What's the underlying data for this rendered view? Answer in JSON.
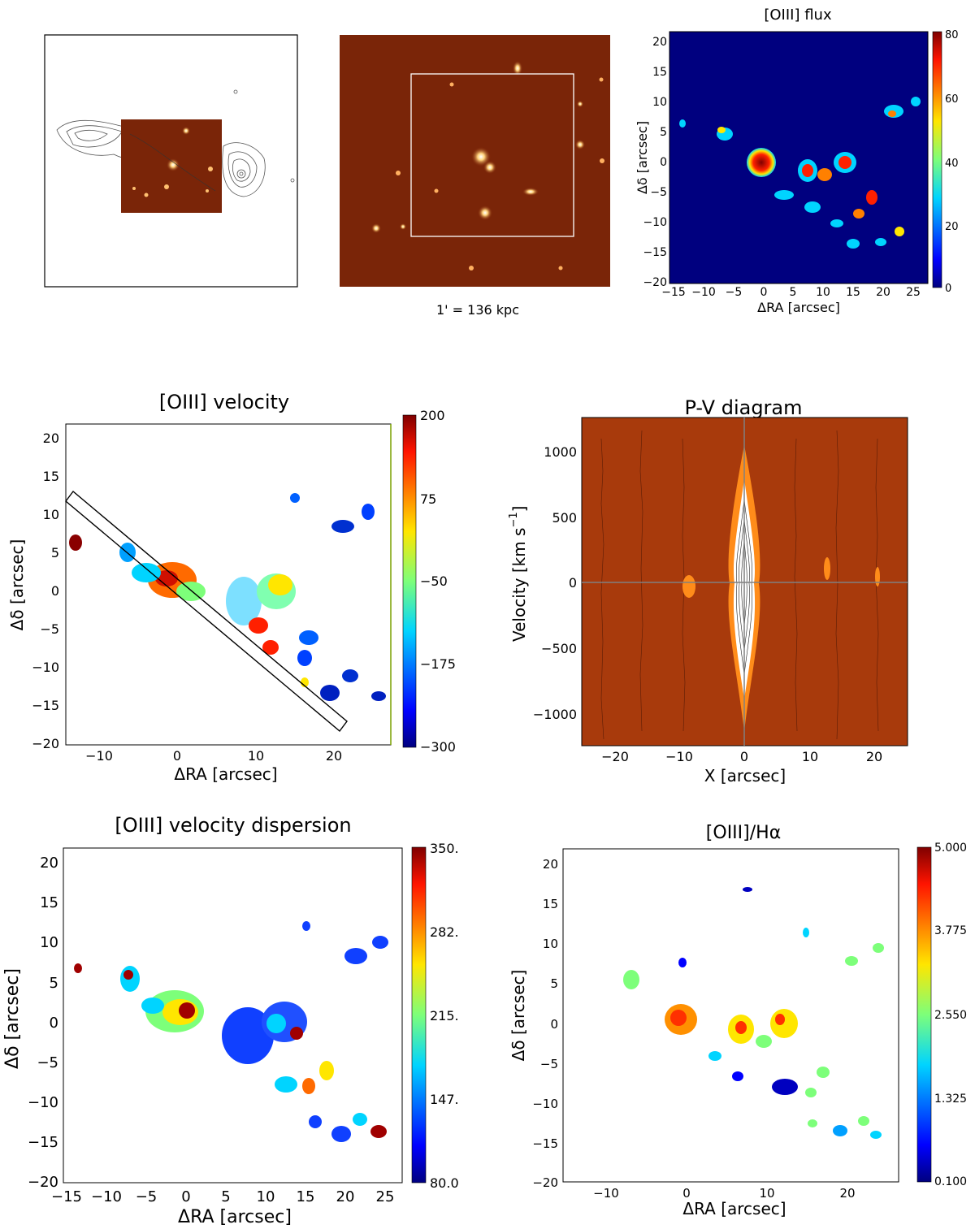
{
  "panels": {
    "radio_overlay": {},
    "optical_image": {
      "scale_label": "1' = 136 kpc"
    },
    "flux": {
      "title": "[OIII] flux",
      "xlabel": "ΔRA [arcsec]",
      "ylabel": "Δδ [arcsec]",
      "xticks": [
        "−15",
        "−10",
        "−5",
        "0",
        "5",
        "10",
        "15",
        "20",
        "25"
      ],
      "yticks": [
        "20",
        "15",
        "10",
        "5",
        "0",
        "−5",
        "−10",
        "−15",
        "−20"
      ],
      "colorbar_ticks": [
        "80",
        "60",
        "40",
        "20",
        "0"
      ]
    },
    "velocity": {
      "title": "[OIII] velocity",
      "xlabel": "ΔRA [arcsec]",
      "ylabel": "Δδ [arcsec]",
      "xticks": [
        "−10",
        "0",
        "10",
        "20"
      ],
      "yticks": [
        "20",
        "15",
        "10",
        "5",
        "0",
        "−5",
        "−10",
        "−15",
        "−20"
      ],
      "colorbar_ticks": [
        "200",
        "75",
        "−50",
        "−175",
        "−300"
      ]
    },
    "pv": {
      "title": "P-V diagram",
      "xlabel": "X [arcsec]",
      "ylabel": "Velocity [km s",
      "ylabel_sup": "−1",
      "ylabel_end": "]",
      "xticks": [
        "−20",
        "−10",
        "0",
        "10",
        "20"
      ],
      "yticks": [
        "1000",
        "500",
        "0",
        "−500",
        "−1000"
      ]
    },
    "dispersion": {
      "title": "[OIII] velocity dispersion",
      "xlabel": "ΔRA [arcsec]",
      "ylabel": "Δδ [arcsec]",
      "xticks": [
        "−15",
        "−10",
        "−5",
        "0",
        "5",
        "10",
        "15",
        "20",
        "25"
      ],
      "yticks": [
        "20",
        "15",
        "10",
        "5",
        "0",
        "−5",
        "−10",
        "−15",
        "−20"
      ],
      "colorbar_ticks": [
        "350.",
        "282.",
        "215.",
        "147.",
        "80.0"
      ]
    },
    "ratio": {
      "title": "[OIII]/Hα",
      "xlabel": "ΔRA [arcsec]",
      "ylabel": "Δδ [arcsec]",
      "xticks": [
        "−10",
        "0",
        "10",
        "20"
      ],
      "yticks": [
        "20",
        "15",
        "10",
        "5",
        "0",
        "−5",
        "−10",
        "−15",
        "−20"
      ],
      "colorbar_ticks": [
        "5.000",
        "3.775",
        "2.550",
        "1.325",
        "0.100"
      ]
    }
  }
}
